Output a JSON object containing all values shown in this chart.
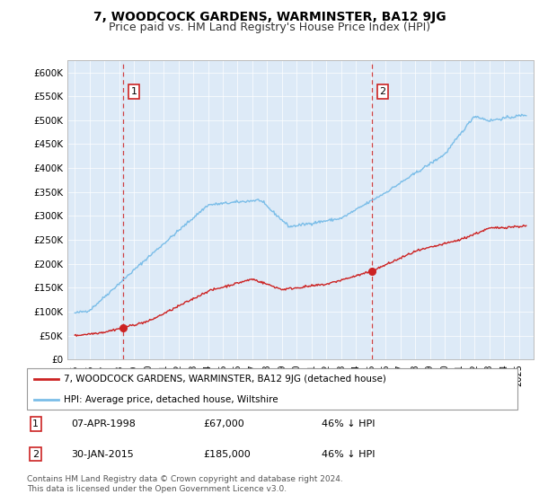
{
  "title": "7, WOODCOCK GARDENS, WARMINSTER, BA12 9JG",
  "subtitle": "Price paid vs. HM Land Registry's House Price Index (HPI)",
  "ylim": [
    0,
    620000
  ],
  "hpi_color": "#7abde8",
  "price_color": "#cc2222",
  "dashed_color": "#cc2222",
  "plot_bg": "#ddeaf7",
  "transaction1_year": 1998.27,
  "transaction1_price": 67000,
  "transaction2_year": 2015.08,
  "transaction2_price": 185000,
  "legend_label1": "7, WOODCOCK GARDENS, WARMINSTER, BA12 9JG (detached house)",
  "legend_label2": "HPI: Average price, detached house, Wiltshire",
  "footer": "Contains HM Land Registry data © Crown copyright and database right 2024.\nThis data is licensed under the Open Government Licence v3.0.",
  "title_fontsize": 10,
  "subtitle_fontsize": 9
}
